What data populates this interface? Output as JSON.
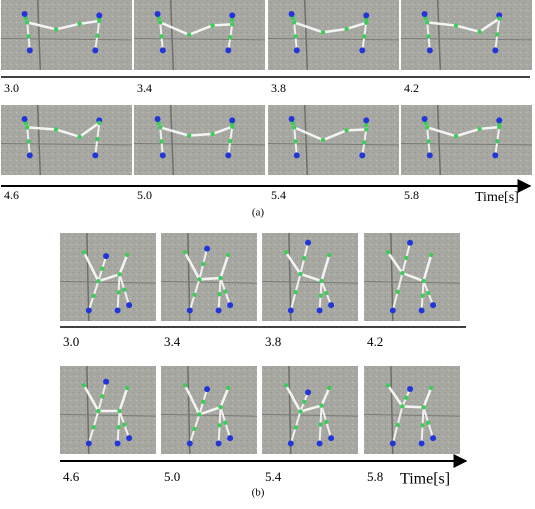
{
  "panels": [
    {
      "rows": [
        {
          "times": [
            "3.0",
            "3.4",
            "3.8",
            "4.2"
          ]
        },
        {
          "times": [
            "4.6",
            "5.0",
            "5.4",
            "5.8"
          ]
        }
      ],
      "axis_label": "Time[s]",
      "caption": "(a)"
    },
    {
      "rows": [
        {
          "times": [
            "3.0",
            "3.4",
            "3.8",
            "4.2"
          ]
        },
        {
          "times": [
            "4.6",
            "5.0",
            "5.4",
            "5.8"
          ]
        }
      ],
      "axis_label": "Time[s]",
      "caption": "(b)"
    }
  ]
}
